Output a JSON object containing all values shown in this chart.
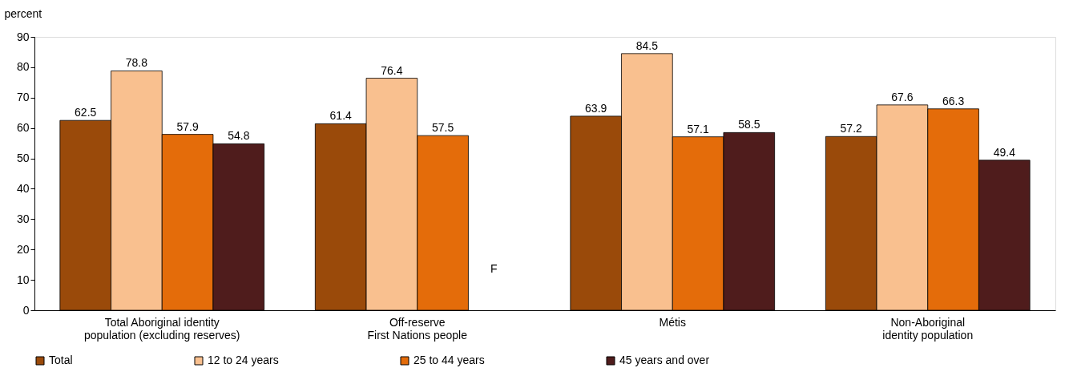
{
  "chart_data": {
    "type": "bar",
    "ylabel": "percent",
    "categories": [
      "Total Aboriginal identity\npopulation (excluding reserves)",
      "Off-reserve\nFirst Nations people",
      "Métis",
      "Non-Aboriginal\nidentity population"
    ],
    "series": [
      {
        "name": "Total",
        "color": "#9a4a0a",
        "values": [
          62.5,
          61.4,
          63.9,
          57.2
        ]
      },
      {
        "name": "12 to 24 years",
        "color": "#f9c08f",
        "values": [
          78.8,
          76.4,
          84.5,
          67.6
        ]
      },
      {
        "name": "25 to 44 years",
        "color": "#e46c0a",
        "values": [
          57.9,
          57.5,
          57.1,
          66.3
        ]
      },
      {
        "name": "45 years and over",
        "color": "#4f1c1c",
        "values": [
          54.8,
          null,
          58.5,
          49.4
        ]
      }
    ],
    "ylim": [
      0,
      90
    ],
    "yticks": [
      0,
      10,
      20,
      30,
      40,
      50,
      60,
      70,
      80,
      90
    ],
    "data_labels": true,
    "grid": false,
    "legend": "bottom",
    "annotations": [
      "F"
    ]
  }
}
